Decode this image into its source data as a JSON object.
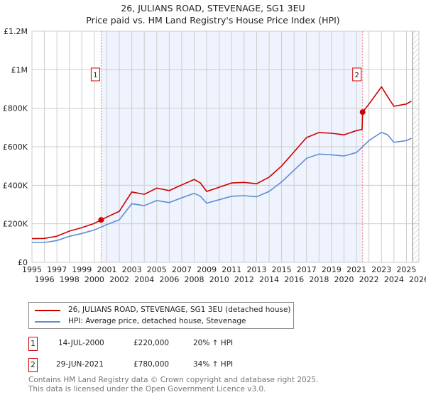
{
  "title": "26, JULIANS ROAD, STEVENAGE, SG1 3EU",
  "subtitle": "Price paid vs. HM Land Registry's House Price Index (HPI)",
  "chart_data": {
    "type": "line",
    "title": "26, JULIANS ROAD, STEVENAGE, SG1 3EU",
    "subtitle": "Price paid vs. HM Land Registry's House Price Index (HPI)",
    "xlim": [
      1995,
      2026
    ],
    "ylim": [
      0,
      1200000
    ],
    "x_ticks": [
      "1995",
      "1996",
      "1997",
      "1998",
      "1999",
      "2000",
      "2001",
      "2002",
      "2003",
      "2004",
      "2005",
      "2006",
      "2007",
      "2008",
      "2009",
      "2010",
      "2011",
      "2012",
      "2013",
      "2014",
      "2015",
      "2016",
      "2017",
      "2018",
      "2019",
      "2020",
      "2021",
      "2022",
      "2023",
      "2024",
      "2025",
      "2026"
    ],
    "y_ticks": [
      {
        "v": 0,
        "label": "£0"
      },
      {
        "v": 200000,
        "label": "£200K"
      },
      {
        "v": 400000,
        "label": "£400K"
      },
      {
        "v": 600000,
        "label": "£600K"
      },
      {
        "v": 800000,
        "label": "£800K"
      },
      {
        "v": 1000000,
        "label": "£1M"
      },
      {
        "v": 1200000,
        "label": "£1.2M"
      }
    ],
    "grid": true,
    "series": [
      {
        "name": "26, JULIANS ROAD, STEVENAGE, SG1 3EU (detached house)",
        "color": "#cc0000",
        "x": [
          1995,
          1996,
          1997,
          1998,
          1999,
          2000,
          2000.54,
          2001,
          2002,
          2003,
          2004,
          2005,
          2006,
          2007,
          2008,
          2008.5,
          2009,
          2010,
          2011,
          2012,
          2013,
          2014,
          2015,
          2016,
          2017,
          2018,
          2019,
          2020,
          2021,
          2021.45,
          2021.49,
          2022,
          2023,
          2023.5,
          2024,
          2025,
          2025.4
        ],
        "y": [
          123000,
          124000,
          136000,
          162000,
          180000,
          202000,
          220000,
          235000,
          265000,
          365000,
          353000,
          385000,
          372000,
          402000,
          430000,
          412000,
          368000,
          390000,
          412000,
          415000,
          408000,
          442000,
          500000,
          574000,
          648000,
          674000,
          670000,
          662000,
          684000,
          690000,
          780000,
          822000,
          911000,
          860000,
          810000,
          822000,
          837000
        ]
      },
      {
        "name": "HPI: Average price, detached house, Stevenage",
        "color": "#5b8fd4",
        "x": [
          1995,
          1996,
          1997,
          1998,
          1999,
          2000,
          2000.54,
          2001,
          2002,
          2003,
          2004,
          2005,
          2006,
          2007,
          2008,
          2008.5,
          2009,
          2010,
          2011,
          2012,
          2013,
          2014,
          2015,
          2016,
          2017,
          2018,
          2019,
          2020,
          2021,
          2021.5,
          2022,
          2023,
          2023.5,
          2024,
          2025,
          2025.4
        ],
        "y": [
          103000,
          103000,
          113000,
          135000,
          150000,
          168000,
          183000,
          196000,
          221000,
          304000,
          294000,
          321000,
          310000,
          335000,
          358000,
          343000,
          307000,
          325000,
          343000,
          346000,
          340000,
          368000,
          417000,
          478000,
          540000,
          562000,
          558000,
          552000,
          570000,
          601000,
          632000,
          675000,
          662000,
          623000,
          632000,
          644000
        ]
      }
    ],
    "annotations": [
      {
        "label": "1",
        "x": 2000.54,
        "y": 220000
      },
      {
        "label": "2",
        "x": 2021.49,
        "y": 780000
      }
    ],
    "shaded_range": [
      2000.54,
      2021.49
    ],
    "forecast_hatch_from": 2025.5,
    "legend_position": "bottom"
  },
  "legend": [
    {
      "label": "26, JULIANS ROAD, STEVENAGE, SG1 3EU (detached house)",
      "color": "#cc0000"
    },
    {
      "label": "HPI: Average price, detached house, Stevenage",
      "color": "#5b8fd4"
    }
  ],
  "sales": [
    {
      "num": "1",
      "date": "14-JUL-2000",
      "price": "£220,000",
      "hpi": "20% ↑ HPI"
    },
    {
      "num": "2",
      "date": "29-JUN-2021",
      "price": "£780,000",
      "hpi": "34% ↑ HPI"
    }
  ],
  "footer": [
    "Contains HM Land Registry data © Crown copyright and database right 2025.",
    "This data is licensed under the Open Government Licence v3.0."
  ]
}
